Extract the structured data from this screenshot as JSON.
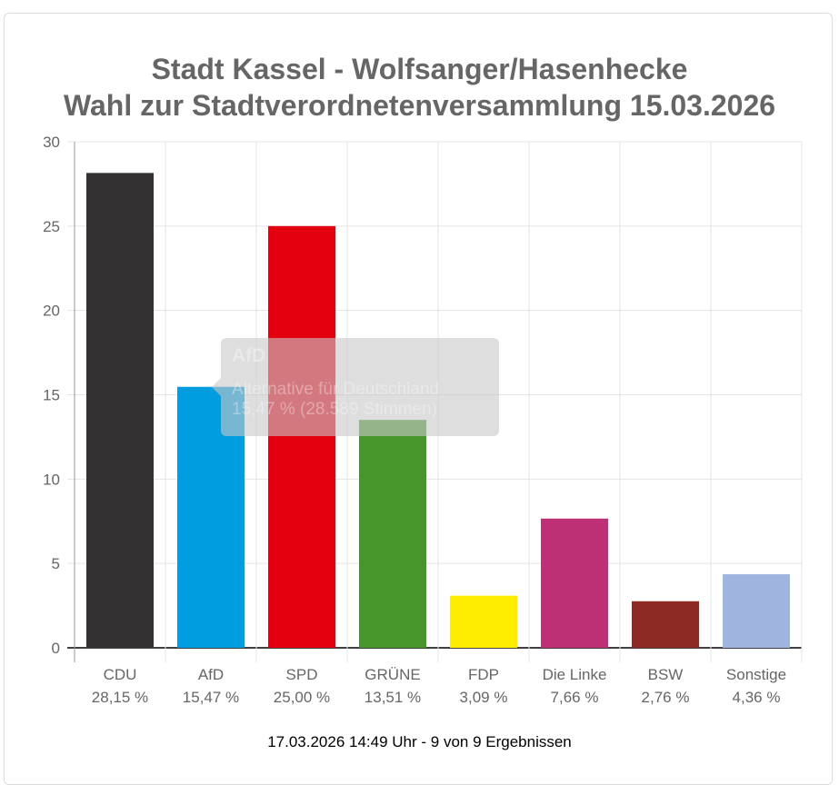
{
  "chart_data": {
    "type": "bar",
    "title": [
      "Stadt Kassel - Wolfsanger/Hasenhecke",
      "Wahl zur Stadtverordnetenversammlung 15.03.2026"
    ],
    "categories": [
      "CDU",
      "AfD",
      "SPD",
      "GRÜNE",
      "FDP",
      "Die Linke",
      "BSW",
      "Sonstige"
    ],
    "values": [
      28.15,
      15.47,
      25.0,
      13.51,
      3.09,
      7.66,
      2.76,
      4.36
    ],
    "value_labels": [
      "28,15 %",
      "15,47 %",
      "25,00 %",
      "13,51 %",
      "3,09 %",
      "7,66 %",
      "2,76 %",
      "4,36 %"
    ],
    "colors": [
      "#333132",
      "#009ee0",
      "#e3000f",
      "#46962b",
      "#ffed00",
      "#be3075",
      "#8d2a24",
      "#a0b4e0"
    ],
    "ylim": [
      0,
      30
    ],
    "yticks": [
      0,
      5,
      10,
      15,
      20,
      25,
      30
    ],
    "grid": true,
    "legend": "none"
  },
  "tooltip": {
    "title": "AfD",
    "line1": "Alternative für Deutschland",
    "line2": "15,47 % (28.589 Stimmen)"
  },
  "footer": "17.03.2026 14:49 Uhr - 9 von 9 Ergebnissen"
}
